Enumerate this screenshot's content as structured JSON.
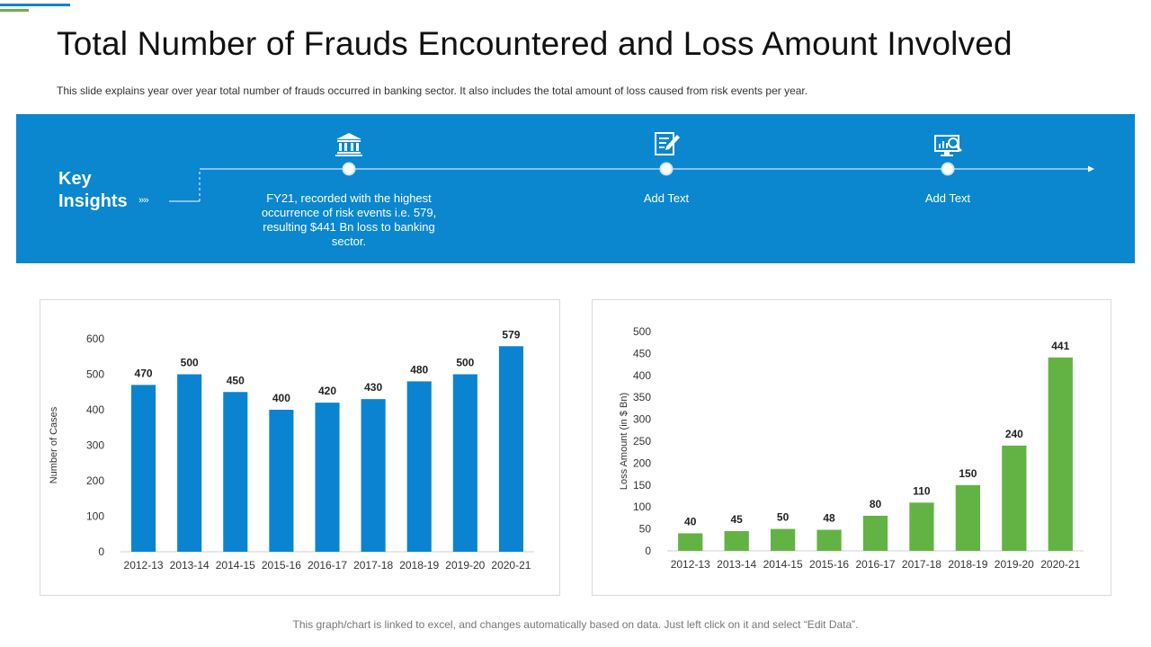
{
  "title": "Total Number of Frauds Encountered and Loss Amount Involved",
  "subtitle": "This slide explains year over year total number of frauds occurred in banking sector. It also includes the total amount of loss caused from risk events per year.",
  "banner": {
    "key_label_line1": "Key",
    "key_label_line2": "Insights",
    "chevrons": "››››",
    "insights": [
      {
        "icon": "bank-icon",
        "text": "FY21, recorded with the highest occurrence of risk events i.e. 579, resulting $441 Bn loss to banking sector."
      },
      {
        "icon": "document-edit-icon",
        "text": "Add Text"
      },
      {
        "icon": "monitor-search-icon",
        "text": "Add Text"
      }
    ]
  },
  "chart_data": [
    {
      "type": "bar",
      "categories": [
        "2012-13",
        "2013-14",
        "2014-15",
        "2015-16",
        "2016-17",
        "2017-18",
        "2018-19",
        "2019-20",
        "2020-21"
      ],
      "values": [
        470,
        500,
        450,
        400,
        420,
        430,
        480,
        500,
        579
      ],
      "xlabel": "",
      "ylabel": "Number of Cases",
      "ylim": [
        0,
        600
      ],
      "yticks": [
        0,
        100,
        200,
        300,
        400,
        500,
        600
      ],
      "color": "#0a84d0",
      "grid": false,
      "data_labels": true
    },
    {
      "type": "bar",
      "categories": [
        "2012-13",
        "2013-14",
        "2014-15",
        "2015-16",
        "2016-17",
        "2017-18",
        "2018-19",
        "2019-20",
        "2020-21"
      ],
      "values": [
        40,
        45,
        50,
        48,
        80,
        110,
        150,
        240,
        441
      ],
      "xlabel": "",
      "ylabel": "Loss Amount (in $ Bn)",
      "ylim": [
        0,
        500
      ],
      "yticks": [
        0,
        50,
        100,
        150,
        200,
        250,
        300,
        350,
        400,
        450,
        500
      ],
      "color": "#62b344",
      "grid": false,
      "data_labels": true
    }
  ],
  "footer": "This graph/chart is linked to excel, and changes automatically based on data. Just left click on it and select “Edit Data”."
}
